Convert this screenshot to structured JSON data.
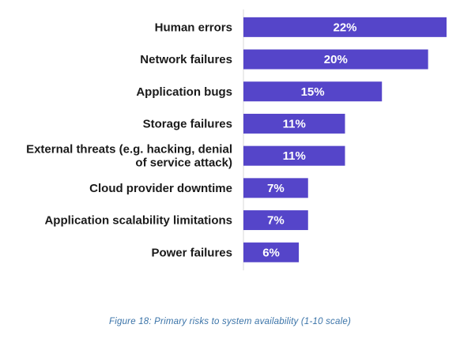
{
  "caption": "Figure 18: Primary risks to system availability (1-10 scale)",
  "colors": {
    "bar": "#5545c9",
    "label": "#1a1a1a",
    "value_text": "#ffffff",
    "caption": "#3a73a8"
  },
  "chart_data": {
    "type": "bar",
    "orientation": "horizontal",
    "title": "",
    "xlabel": "",
    "ylabel": "",
    "xlim": [
      0,
      22
    ],
    "grid": false,
    "legend": "none",
    "categories": [
      [
        "Human errors"
      ],
      [
        "Network failures"
      ],
      [
        "Application bugs"
      ],
      [
        "Storage failures"
      ],
      [
        "External threats (e.g. hacking, denial",
        "of service attack)"
      ],
      [
        "Cloud provider downtime"
      ],
      [
        "Application scalability limitations"
      ],
      [
        "Power failures"
      ]
    ],
    "values": [
      22,
      20,
      15,
      11,
      11,
      7,
      7,
      6
    ],
    "value_labels": [
      "22%",
      "20%",
      "15%",
      "11%",
      "11%",
      "7%",
      "7%",
      "6%"
    ]
  }
}
